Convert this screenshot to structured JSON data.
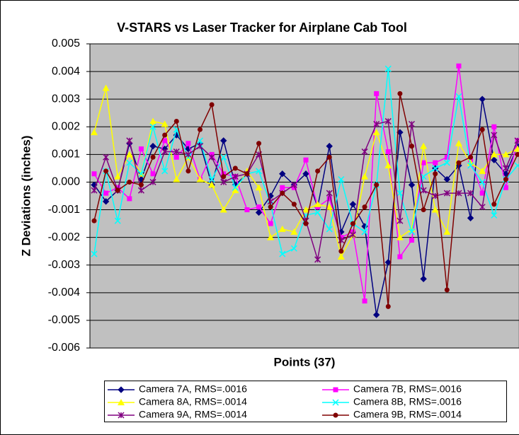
{
  "chart_data": {
    "type": "line",
    "title": "V-STARS vs Laser Tracker for Airplane Cab Tool",
    "x_label": "Points (37)",
    "y_label": "Z Deviations (inches)",
    "categories": [
      null,
      null,
      null,
      null,
      null,
      null,
      null,
      null,
      null,
      null,
      null,
      null,
      null,
      null,
      null,
      null,
      null,
      null,
      null,
      null,
      null,
      null,
      null,
      null,
      null,
      null,
      null,
      null,
      null,
      null,
      null,
      null,
      null,
      null,
      null,
      null,
      null
    ],
    "ylim": [
      -0.006,
      0.005
    ],
    "yticks": [
      -0.006,
      -0.005,
      -0.004,
      -0.003,
      -0.002,
      -0.001,
      {
        "value": 0,
        "label": "0.000"
      },
      0.001,
      0.002,
      0.003,
      0.004,
      0.005
    ],
    "grid": true,
    "legend": "bottom",
    "series": [
      {
        "name": "Camera 7A, RMS=.0016",
        "color": "#000080",
        "marker": "diamond",
        "values": [
          -0.0001,
          -0.0007,
          -0.0003,
          0.0014,
          0.0001,
          0.0013,
          0.0012,
          0.0017,
          0.0012,
          0.0014,
          -0.0001,
          0.0015,
          -0.0001,
          0.0003,
          -0.0011,
          -0.0005,
          0.0003,
          -0.0001,
          0.0003,
          -0.0009,
          0.0013,
          -0.0018,
          -0.0008,
          -0.0016,
          -0.0048,
          -0.0029,
          0.0018,
          -0.0001,
          -0.0035,
          0.0005,
          0.0001,
          0.0006,
          -0.0013,
          0.003,
          0.0008,
          0.0003,
          0.0013
        ]
      },
      {
        "name": "Camera 7B, RMS=.0016",
        "color": "#ff00ff",
        "marker": "square",
        "values": [
          0.0003,
          -0.0004,
          -0.0002,
          -0.0006,
          0.0012,
          0.0003,
          0.0015,
          0.0009,
          0.0014,
          0.0001,
          0.001,
          0.0003,
          0.0002,
          -0.001,
          -0.0009,
          -0.0015,
          -0.0002,
          -0.0002,
          0.0008,
          -0.0009,
          -0.0006,
          -0.002,
          -0.0018,
          -0.0043,
          0.0032,
          0.0011,
          -0.0027,
          -0.0021,
          0.0007,
          0.0007,
          0.0009,
          0.0042,
          0.0008,
          -0.0004,
          0.002,
          -0.0002,
          0.0015
        ]
      },
      {
        "name": "Camera 8A, RMS=.0014",
        "color": "#ffff00",
        "marker": "triangle",
        "values": [
          0.0018,
          0.0034,
          0.0002,
          0.001,
          0.0003,
          0.0022,
          0.0021,
          0.0001,
          0.0009,
          0.0001,
          -0.0001,
          -0.001,
          -0.0003,
          0.0004,
          -0.0002,
          -0.002,
          -0.0017,
          -0.0018,
          -0.001,
          -0.0008,
          -0.0009,
          -0.0027,
          -0.0019,
          0.0002,
          0.0018,
          0.0006,
          -0.002,
          -0.0017,
          0.0013,
          -0.001,
          -0.0018,
          0.0014,
          0.0007,
          0.0004,
          0.001,
          0.001,
          0.0012
        ]
      },
      {
        "name": "Camera 8B, RMS=.0016",
        "color": "#00ffff",
        "marker": "x",
        "values": [
          -0.0026,
          0.0004,
          -0.0014,
          0.0007,
          0.0003,
          0.002,
          0.0004,
          0.0019,
          0.0009,
          0.0015,
          0.0001,
          0.0009,
          -0.0002,
          0.0003,
          0.0004,
          -0.0008,
          -0.0026,
          -0.0024,
          -0.0012,
          -0.0011,
          -0.0017,
          0.0001,
          -0.0015,
          -0.0018,
          -0.0001,
          0.0041,
          -0.0004,
          -0.0018,
          0.0002,
          0.0005,
          0.0007,
          0.0031,
          0.0006,
          0.0,
          -0.0012,
          0.0001,
          0.0006
        ]
      },
      {
        "name": "Camera 9A, RMS=.0014",
        "color": "#800080",
        "marker": "star",
        "values": [
          -0.0003,
          0.0009,
          -0.0003,
          0.0015,
          -0.0003,
          0.0,
          0.0011,
          0.0011,
          0.001,
          0.0013,
          0.0009,
          0.0,
          0.0002,
          0.0003,
          0.001,
          -0.0007,
          -0.0004,
          -0.0001,
          -0.0014,
          -0.0028,
          -0.0004,
          -0.0021,
          -0.0019,
          0.0011,
          0.0021,
          0.0022,
          -0.0014,
          0.0021,
          -0.0003,
          -0.0005,
          -0.0004,
          -0.0004,
          -0.0004,
          -0.0009,
          0.0017,
          0.0005,
          0.0015
        ]
      },
      {
        "name": "Camera 9B, RMS=.0014",
        "color": "#800000",
        "marker": "circle",
        "values": [
          -0.0014,
          0.0004,
          -0.0003,
          0.0,
          -0.0001,
          0.0009,
          0.0017,
          0.0022,
          0.0004,
          0.0019,
          0.0028,
          0.0002,
          0.0005,
          0.0003,
          0.0014,
          -0.0009,
          -0.0004,
          -0.0008,
          -0.0015,
          0.0004,
          0.0009,
          -0.0025,
          -0.0015,
          -0.0009,
          -0.0001,
          -0.0045,
          0.0032,
          0.0013,
          -0.001,
          0.0003,
          -0.0039,
          0.0007,
          0.0009,
          0.0019,
          -0.0008,
          0.0001,
          0.001
        ]
      }
    ]
  }
}
